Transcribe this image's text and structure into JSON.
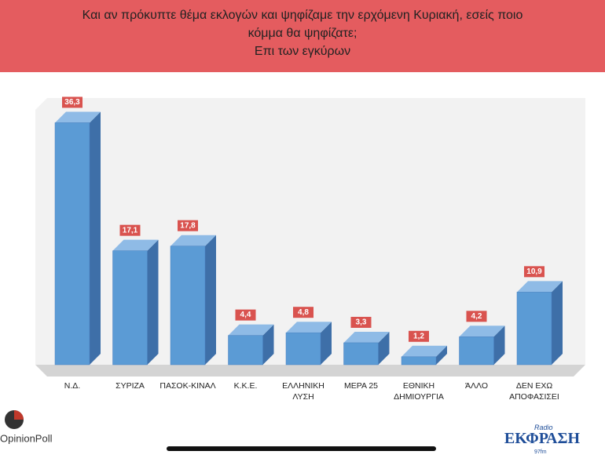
{
  "chart_data": {
    "type": "bar",
    "title": [
      "Και αν πρόκυπτε θέμα εκλογών και ψηφίζαμε την ερχόμενη Κυριακή, εσείς ποιο",
      "κόμμα θα ψηφίζατε;"
    ],
    "subtitle": "Επι των εγκύρων",
    "categories": [
      "Ν.Δ.",
      "ΣΥΡΙΖΑ",
      "ΠΑΣΟΚ-ΚΙΝΑΛ",
      "Κ.Κ.Ε.",
      "ΕΛΛΗΝΙΚΗ ΛΥΣΗ",
      "ΜΕΡΑ 25",
      "ΕΘΝΙΚΗ ΔΗΜΙΟΥΡΓΙΑ",
      "ΆΛΛΟ",
      "ΔΕΝ ΕΧΩ ΑΠΟΦΑΣΙΣΕΙ"
    ],
    "values": [
      36.3,
      17.1,
      17.8,
      4.4,
      4.8,
      3.3,
      1.2,
      4.2,
      10.9
    ],
    "value_labels": [
      "36,3",
      "17,1",
      "17,8",
      "4,4",
      "4,8",
      "3,3",
      "1,2",
      "4,2",
      "10,9"
    ],
    "color": "#5b9bd5"
  },
  "logos": {
    "left": "OpinionPoll",
    "right_small": "Radio",
    "right": "ΕΚΦΡΑΣΗ",
    "right_freq": "97fm"
  }
}
